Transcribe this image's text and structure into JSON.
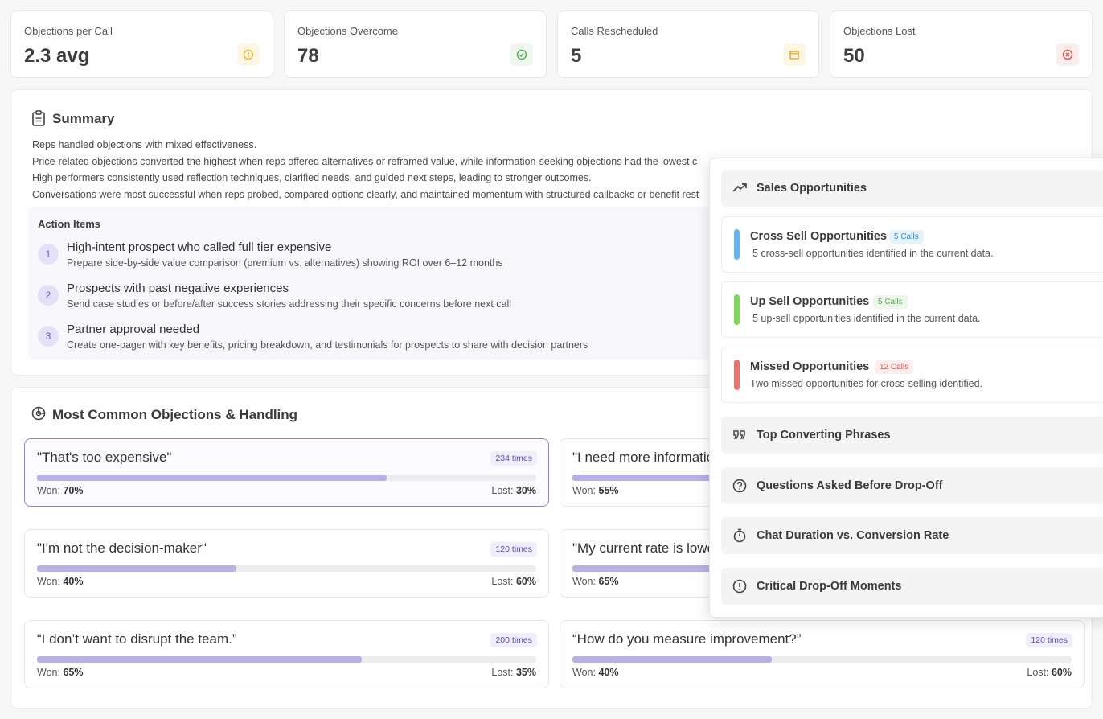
{
  "stats": [
    {
      "label": "Objections per Call",
      "value": "2.3 avg",
      "icon": "alert-circle-icon",
      "color": "#f0b429",
      "bg": "#fdf6e3"
    },
    {
      "label": "Objections Overcome",
      "value": "78",
      "icon": "check-circle-icon",
      "color": "#4caf50",
      "bg": "#eef8ef"
    },
    {
      "label": "Calls Rescheduled",
      "value": "5",
      "icon": "calendar-icon",
      "color": "#e0a21a",
      "bg": "#fdf6e3"
    },
    {
      "label": "Objections Lost",
      "value": "50",
      "icon": "x-circle-icon",
      "color": "#e05252",
      "bg": "#fdeeee"
    }
  ],
  "summary": {
    "title": "Summary",
    "lines": [
      "Reps handled objections with mixed effectiveness.",
      "Price-related objections converted the highest when reps offered alternatives or reframed value, while information-seeking objections had the lowest c",
      "High performers consistently used reflection techniques, clarified needs, and guided next steps, leading to stronger outcomes.",
      "Conversations were most successful when reps probed, compared options clearly, and maintained momentum with structured callbacks or benefit rest"
    ],
    "action_items_title": "Action Items",
    "action_items": [
      {
        "num": "1",
        "title": "High-intent prospect who called full tier expensive",
        "desc": "Prepare side-by-side value comparison (premium vs. alternatives) showing ROI over 6–12 months"
      },
      {
        "num": "2",
        "title": "Prospects with past negative experiences",
        "desc": "Send case studies or before/after success stories addressing their specific concerns before next call"
      },
      {
        "num": "3",
        "title": "Partner approval needed",
        "desc": "Create one-pager with key benefits, pricing breakdown, and testimonials for prospects to share with decision partners"
      }
    ]
  },
  "objections": {
    "title": "Most Common Objections & Handling",
    "won_label": "Won:",
    "lost_label": "Lost:",
    "items": [
      {
        "quote": "\"That's too expensive\"",
        "times": "234 times",
        "won": "70%",
        "lost": "30%",
        "won_fraction": 0.7
      },
      {
        "quote": "\"I need more informatio",
        "times": "",
        "won": "55%",
        "lost": "",
        "won_fraction": 0.55
      },
      {
        "quote": "\"I'm not the decision-maker\"",
        "times": "120 times",
        "won": "40%",
        "lost": "60%",
        "won_fraction": 0.4
      },
      {
        "quote": "\"My current rate is lowe",
        "times": "",
        "won": "65%",
        "lost": "",
        "won_fraction": 0.65
      },
      {
        "quote": "“I don’t want to disrupt the team.”",
        "times": "200 times",
        "won": "65%",
        "lost": "35%",
        "won_fraction": 0.65
      },
      {
        "quote": "“How do you measure improvement?”",
        "times": "120 times",
        "won": "40%",
        "lost": "60%",
        "won_fraction": 0.4
      }
    ]
  },
  "overlay": {
    "sales_title": "Sales Opportunities",
    "opportunities": [
      {
        "title": "Cross Sell Opportunities",
        "badge": "5 Calls",
        "desc": "5 cross-sell opportunities identified in the current data.",
        "color": "#64b5f6",
        "badge_color": "#2a8fd6",
        "badge_bg": "#e6f3fd"
      },
      {
        "title": "Up Sell Opportunities",
        "badge": "5 Calls",
        "desc": "5 up-sell opportunities identified in the current data.",
        "color": "#7ed957",
        "badge_color": "#4caf50",
        "badge_bg": "#eef8ea"
      },
      {
        "title": "Missed Opportunities",
        "badge": "12 Calls",
        "desc": "Two missed opportunities for cross-selling identified.",
        "color": "#f0706a",
        "badge_color": "#e05252",
        "badge_bg": "#fdeeee"
      }
    ],
    "sections": [
      {
        "title": "Top Converting Phrases",
        "icon": "quote-icon"
      },
      {
        "title": "Questions Asked Before Drop-Off",
        "icon": "question-circle-icon"
      },
      {
        "title": "Chat Duration vs. Conversion Rate",
        "icon": "stopwatch-icon"
      },
      {
        "title": "Critical Drop-Off Moments",
        "icon": "alert-circle-icon"
      }
    ]
  }
}
